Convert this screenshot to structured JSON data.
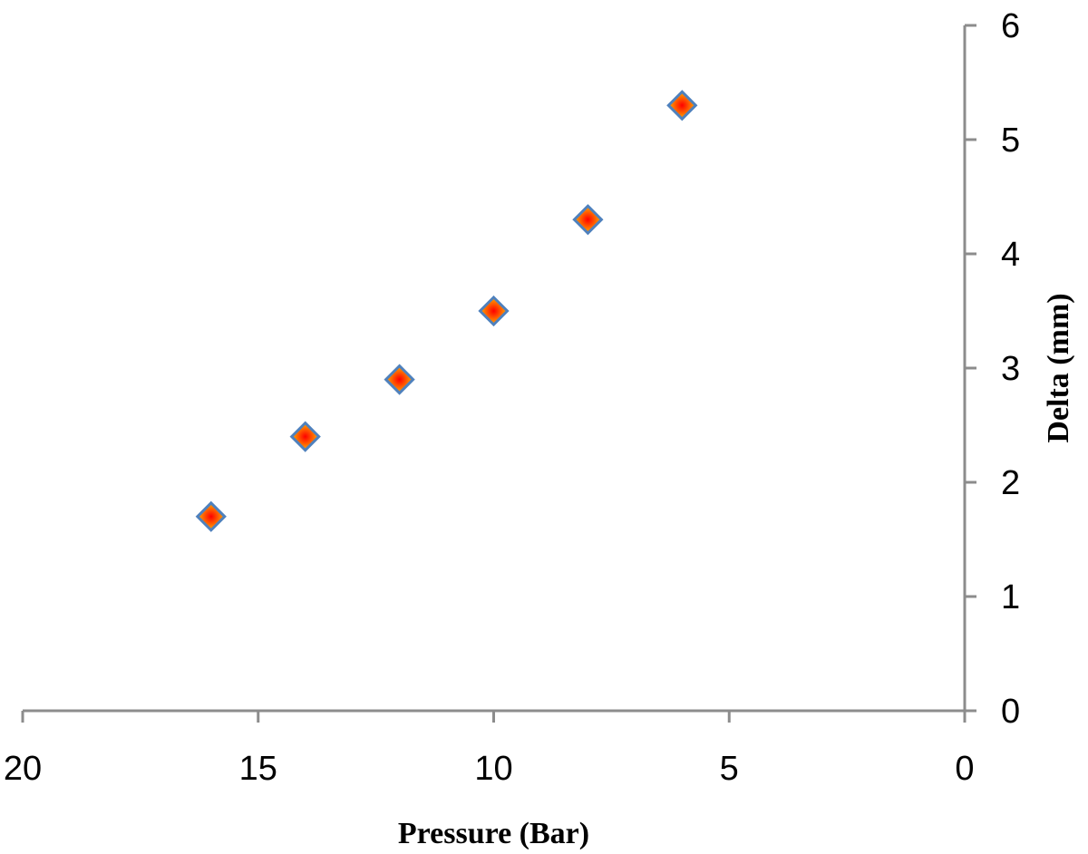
{
  "chart_data": {
    "type": "scatter",
    "title": "",
    "xlabel": "Pressure (Bar)",
    "ylabel": "Delta (mm)",
    "xlim": [
      20,
      0
    ],
    "ylim": [
      0,
      6
    ],
    "x_reversed": true,
    "y_axis_position": "right",
    "x_ticks": [
      20,
      15,
      10,
      5,
      0
    ],
    "y_ticks": [
      0,
      1,
      2,
      3,
      4,
      5,
      6
    ],
    "x_tick_labels": [
      "20",
      "15",
      "10",
      "5",
      "0"
    ],
    "y_tick_labels": [
      "0",
      "1",
      "2",
      "3",
      "4",
      "5",
      "6"
    ],
    "grid": false,
    "legend": "none",
    "marker": "diamond",
    "marker_fill": [
      "#ffd200",
      "#ff0000"
    ],
    "marker_edge": "#4f81bd",
    "axis_color": "#8c8c8c",
    "series": [
      {
        "x": [
          16,
          14,
          12,
          10,
          8,
          6
        ],
        "y": [
          1.7,
          2.4,
          2.9,
          3.5,
          4.3,
          5.3
        ]
      }
    ]
  }
}
